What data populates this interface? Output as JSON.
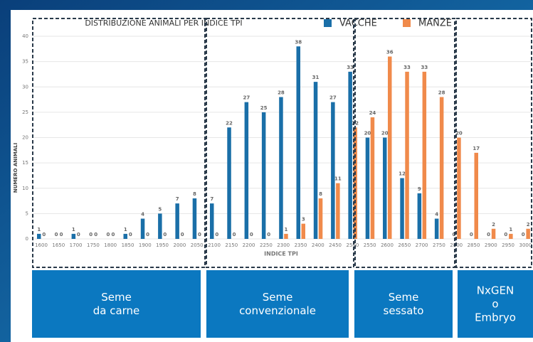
{
  "chart_data": {
    "type": "bar",
    "title": "DISTRIBUZIONE ANIMALI PER INDICE TPI",
    "x_label": "INDICE TPI",
    "y_label": "NUMERO ANIMALI",
    "categories": [
      "1600",
      "1650",
      "1700",
      "1750",
      "1800",
      "1850",
      "1900",
      "1950",
      "2000",
      "2050",
      "2100",
      "2150",
      "2200",
      "2250",
      "2300",
      "2350",
      "2400",
      "2450",
      "2500",
      "2550",
      "2600",
      "2650",
      "2700",
      "2750",
      "2800",
      "2850",
      "2900",
      "2950",
      "3000"
    ],
    "series": [
      {
        "name": "VACCHE",
        "color": "#1a6fa8",
        "values": [
          1,
          0,
          1,
          0,
          0,
          1,
          4,
          5,
          7,
          8,
          7,
          22,
          27,
          25,
          28,
          38,
          31,
          27,
          33,
          20,
          20,
          12,
          9,
          4,
          0,
          0,
          0,
          0,
          0
        ]
      },
      {
        "name": "MANZE",
        "color": "#f08a4b",
        "values": [
          0,
          0,
          0,
          0,
          0,
          0,
          0,
          0,
          0,
          0,
          0,
          0,
          0,
          0,
          1,
          3,
          8,
          11,
          22,
          24,
          36,
          33,
          33,
          28,
          20,
          17,
          2,
          1,
          2
        ]
      }
    ],
    "ylim": [
      0,
      40
    ],
    "yticks": [
      0,
      5,
      10,
      15,
      20,
      25,
      30,
      35,
      40
    ],
    "grid": true,
    "groups": [
      {
        "lines": [
          "Seme",
          "da carne"
        ]
      },
      {
        "lines": [
          "Seme",
          "convenzionale"
        ]
      },
      {
        "lines": [
          "Seme",
          "sessato"
        ]
      },
      {
        "lines": [
          "NxGEN",
          "o",
          "Embryo"
        ]
      }
    ]
  }
}
